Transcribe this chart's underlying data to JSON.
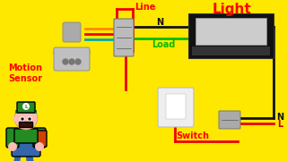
{
  "bg_color": "#FFE800",
  "title_text": "Light",
  "title_color": "#FF0000",
  "motion_sensor_label": "Motion\nSensor",
  "motion_sensor_color": "#FF0000",
  "switch_label": "Switch",
  "switch_color": "#FF0000",
  "line_label": "Line",
  "line_label_color": "#FF0000",
  "load_label": "Load",
  "load_label_color": "#00BB00",
  "N_label_top": "N",
  "N_label_bottom": "N",
  "L_label": "L",
  "wire_black_color": "#111111",
  "wire_red_color": "#EE0000",
  "wire_green_color": "#00BB00",
  "wire_orange_color": "#FF8800",
  "wire_teal_color": "#00AAAA",
  "connector_color": "#BBBBBB",
  "sensor_color": "#AAAAAA",
  "light_body_color": "#111111",
  "light_lens_color": "#CCCCCC",
  "switch_body_color": "#EEEEEE",
  "term_color": "#AAAAAA"
}
